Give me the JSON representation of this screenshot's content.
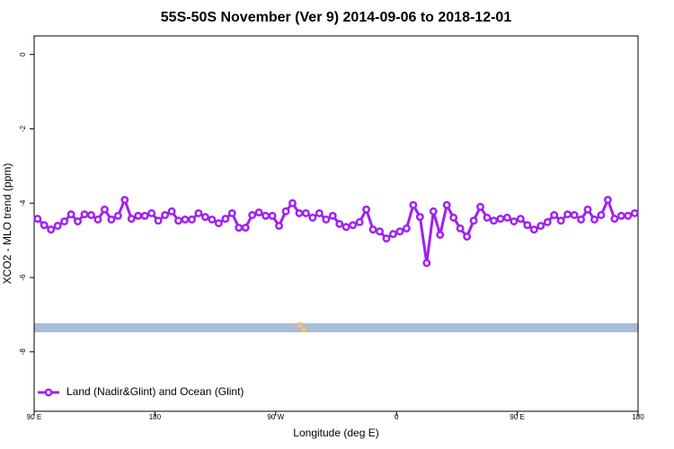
{
  "chart_data": {
    "type": "line",
    "title": "55S-50S November (Ver 9)   2014-09-06 to 2018-12-01",
    "x_label": "Longitude (deg E)",
    "y_label": "XCO2 - MLO trend (ppm)",
    "xlim": [
      90,
      540
    ],
    "ylim": [
      -9.6,
      0.5
    ],
    "xticks": [
      {
        "value": 90,
        "label": "90 E"
      },
      180,
      {
        "value": 270,
        "label": "90 W"
      },
      {
        "value": 360,
        "label": "0"
      },
      {
        "value": 450,
        "label": "90 E"
      },
      {
        "value": 540,
        "label": "180"
      }
    ],
    "yticks": [
      0,
      -2,
      -4,
      -6,
      -8
    ],
    "legend": "bottom-left",
    "series": [
      {
        "name": "Land (Nadir&Glint) and Ocean (Glint)",
        "color": "#a020f0",
        "x": [
          92.5,
          97.5,
          102.5,
          107.5,
          112.5,
          117.5,
          122.5,
          127.5,
          132.5,
          137.5,
          142.5,
          147.5,
          152.5,
          157.5,
          162.5,
          167.5,
          172.5,
          177.5,
          182.5,
          187.5,
          192.5,
          197.5,
          202.5,
          207.5,
          212.5,
          217.5,
          222.5,
          227.5,
          232.5,
          237.5,
          242.5,
          247.5,
          252.5,
          257.5,
          262.5,
          267.5,
          272.5,
          277.5,
          282.5,
          287.5,
          292.5,
          297.5,
          302.5,
          307.5,
          312.5,
          317.5,
          322.5,
          327.5,
          332.5,
          337.5,
          342.5,
          347.5,
          352.5,
          357.5,
          362.5,
          367.5,
          372.5,
          377.5,
          382.5,
          387.5,
          392.5,
          397.5,
          402.5,
          407.5,
          412.5,
          417.5,
          422.5,
          427.5,
          432.5,
          437.5,
          442.5,
          447.5,
          452.5,
          457.5,
          462.5,
          467.5,
          472.5,
          477.5,
          482.5,
          487.5,
          492.5,
          497.5,
          502.5,
          507.5,
          512.5,
          517.5,
          522.5,
          527.5,
          532.5,
          537.5
        ],
        "values": [
          -4.42,
          -4.59,
          -4.71,
          -4.61,
          -4.49,
          -4.3,
          -4.49,
          -4.3,
          -4.32,
          -4.44,
          -4.17,
          -4.44,
          -4.34,
          -3.91,
          -4.42,
          -4.34,
          -4.34,
          -4.27,
          -4.47,
          -4.32,
          -4.22,
          -4.47,
          -4.44,
          -4.44,
          -4.27,
          -4.37,
          -4.44,
          -4.54,
          -4.42,
          -4.27,
          -4.66,
          -4.66,
          -4.32,
          -4.25,
          -4.34,
          -4.34,
          -4.61,
          -4.22,
          -4.0,
          -4.27,
          -4.27,
          -4.39,
          -4.27,
          -4.44,
          -4.34,
          -4.56,
          -4.64,
          -4.59,
          -4.51,
          -4.17,
          -4.71,
          -4.76,
          -4.95,
          -4.83,
          -4.76,
          -4.68,
          -4.05,
          -4.37,
          -5.61,
          -4.22,
          -4.85,
          -4.05,
          -4.39,
          -4.68,
          -4.9,
          -4.47,
          -4.1,
          -4.39,
          -4.47,
          -4.42,
          -4.39,
          -4.49,
          -4.42,
          -4.59,
          -4.71,
          -4.61,
          -4.51,
          -4.32,
          -4.47,
          -4.3,
          -4.32,
          -4.44,
          -4.17,
          -4.44,
          -4.32,
          -3.91,
          -4.42,
          -4.34,
          -4.34,
          -4.27
        ]
      }
    ]
  }
}
